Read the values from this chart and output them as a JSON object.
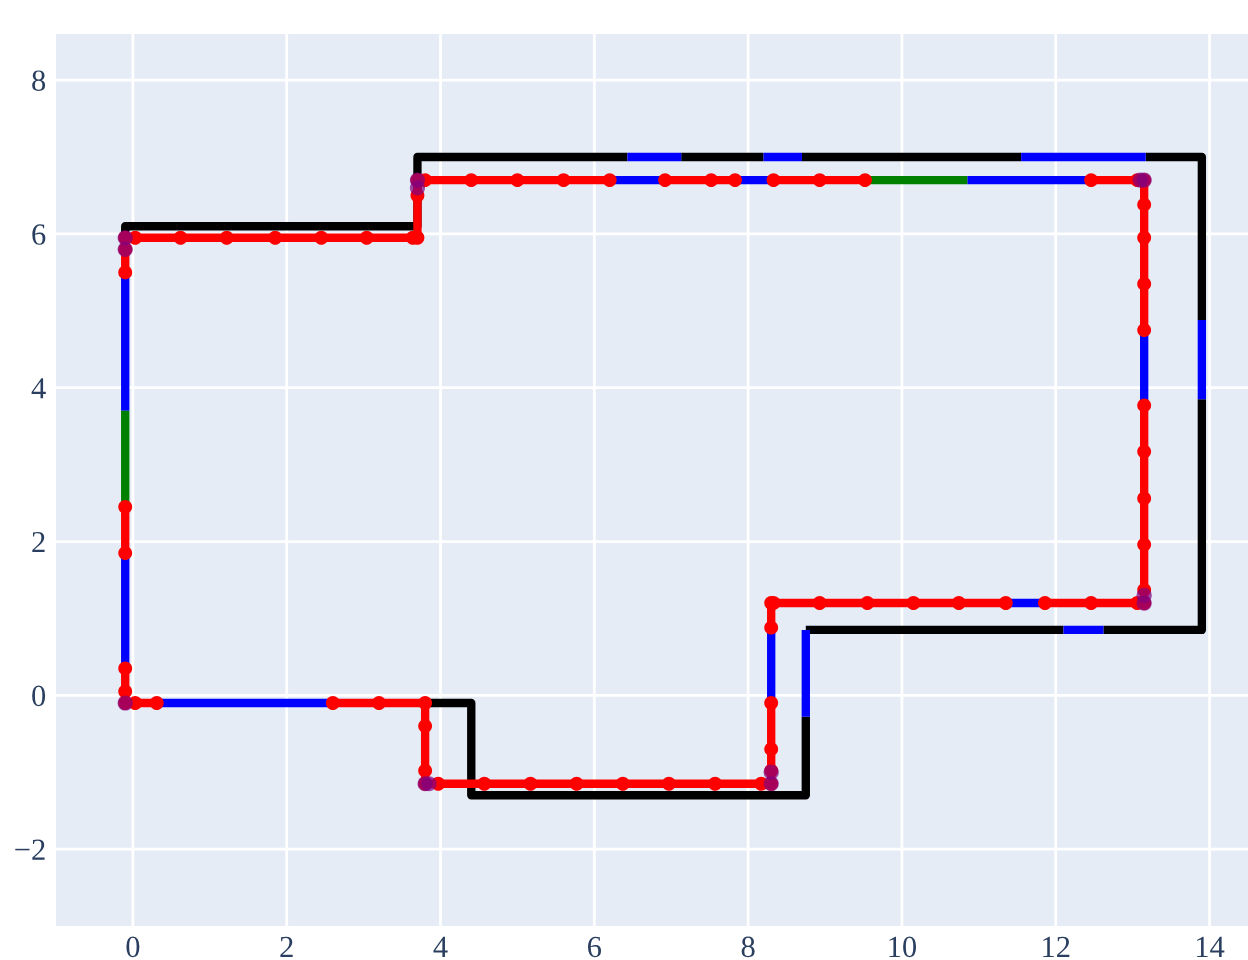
{
  "chart_data": {
    "type": "line",
    "xlim": [
      -1,
      14.5
    ],
    "ylim": [
      -3,
      8.6
    ],
    "xticks": [
      0,
      2,
      4,
      6,
      8,
      10,
      12,
      14
    ],
    "yticks": [
      {
        "value": -2,
        "label": "−2"
      },
      0,
      2,
      4,
      6,
      8
    ],
    "grid": true,
    "legend": false,
    "line_style": "solid",
    "series": [
      {
        "color": "#000000",
        "marker": "none",
        "x": [
          -0.1,
          -0.1,
          3.7,
          3.7,
          6.43,
          null,
          7.13,
          8.2,
          null,
          8.7,
          11.55,
          null,
          13.17,
          13.9,
          13.9,
          null,
          13.9,
          13.9,
          12.62,
          null,
          12.1,
          8.75,
          null,
          8.75,
          8.75,
          4.4,
          4.4,
          3.8
        ],
        "values": [
          6.0,
          6.1,
          6.1,
          7.0,
          7.0,
          null,
          7.0,
          7.0,
          null,
          7.0,
          7.0,
          null,
          7.0,
          7.0,
          4.88,
          null,
          3.85,
          0.85,
          0.85,
          null,
          0.85,
          0.85,
          null,
          -0.28,
          -1.3,
          -1.3,
          -0.1,
          -0.1
        ]
      },
      {
        "color": "#0000ff",
        "marker": "none",
        "x": [
          -0.1,
          -0.1
        ],
        "values": [
          0.35,
          1.85
        ]
      },
      {
        "color": "#0000ff",
        "marker": "none",
        "x": [
          -0.1,
          -0.1
        ],
        "values": [
          3.7,
          5.5
        ]
      },
      {
        "color": "#0000ff",
        "marker": "none",
        "x": [
          6.43,
          7.13,
          null,
          8.2,
          8.7,
          null,
          11.55,
          13.17,
          null,
          13.9,
          13.9,
          null,
          12.62,
          12.1,
          null,
          8.75,
          8.75,
          null,
          6.2,
          6.92,
          null,
          7.83,
          8.33,
          null,
          10.85,
          12.46,
          null,
          13.15,
          13.15,
          null,
          11.86,
          11.35,
          null,
          8.3,
          8.3,
          null,
          2.6,
          0.31
        ],
        "values": [
          7.0,
          7.0,
          null,
          7.0,
          7.0,
          null,
          7.0,
          7.0,
          null,
          4.88,
          3.85,
          null,
          0.85,
          0.85,
          null,
          0.85,
          -0.28,
          null,
          6.7,
          6.7,
          null,
          6.7,
          6.7,
          null,
          6.7,
          6.7,
          null,
          4.75,
          3.77,
          null,
          1.2,
          1.2,
          null,
          0.88,
          -0.1,
          null,
          -0.1,
          -0.1
        ]
      },
      {
        "color": "#008000",
        "marker": "none",
        "x": [
          -0.1,
          -0.1,
          null,
          9.52,
          10.85
        ],
        "values": [
          2.45,
          3.7,
          null,
          6.7,
          6.7
        ]
      },
      {
        "color": "#ff0000",
        "marker": "circle",
        "x": [
          0.31,
          0.03,
          -0.1,
          -0.1,
          -0.1,
          null,
          -0.1,
          -0.1,
          null,
          -0.1,
          -0.1,
          -0.1,
          0.03,
          0.62,
          1.22,
          1.85,
          2.45,
          3.04,
          3.64,
          3.7,
          3.7,
          3.7,
          3.8,
          4.4,
          5.0,
          5.6,
          6.2,
          null,
          6.92,
          7.52,
          7.83,
          null,
          8.33,
          8.93,
          9.52,
          null,
          12.46,
          13.06,
          13.15,
          13.15,
          13.15,
          13.15,
          13.15,
          null,
          13.15,
          13.15,
          13.15,
          13.15,
          13.15,
          13.15,
          13.06,
          12.46,
          11.86,
          null,
          11.35,
          10.74,
          10.15,
          9.55,
          8.93,
          8.33,
          8.3,
          8.3,
          null,
          8.3,
          8.3,
          8.3,
          8.3,
          8.17,
          7.57,
          6.97,
          6.37,
          5.77,
          5.17,
          4.57,
          3.97,
          3.8,
          3.8,
          3.8,
          3.8,
          3.2,
          2.6
        ],
        "values": [
          -0.1,
          -0.1,
          -0.1,
          0.05,
          0.35,
          null,
          1.85,
          2.45,
          null,
          5.5,
          5.8,
          5.95,
          5.95,
          5.95,
          5.95,
          5.95,
          5.95,
          5.95,
          5.95,
          5.95,
          6.5,
          6.7,
          6.7,
          6.7,
          6.7,
          6.7,
          6.7,
          null,
          6.7,
          6.7,
          6.7,
          null,
          6.7,
          6.7,
          6.7,
          null,
          6.7,
          6.7,
          6.7,
          6.38,
          5.95,
          5.35,
          4.75,
          null,
          3.77,
          3.17,
          2.56,
          1.96,
          1.37,
          1.2,
          1.2,
          1.2,
          1.2,
          null,
          1.2,
          1.2,
          1.2,
          1.2,
          1.2,
          1.2,
          1.2,
          0.88,
          null,
          -0.1,
          -0.7,
          -0.98,
          -1.15,
          -1.15,
          -1.15,
          -1.15,
          -1.15,
          -1.15,
          -1.15,
          -1.15,
          -1.15,
          -1.15,
          -0.98,
          -0.4,
          -0.1,
          -0.1,
          -0.1
        ]
      },
      {
        "type": "scatter",
        "color": "#800080",
        "marker": "circle",
        "x": [
          -0.1,
          -0.1,
          -0.1,
          3.7,
          3.7,
          13.1,
          13.15,
          13.15,
          13.15,
          8.3,
          8.3,
          3.8,
          3.85
        ],
        "values": [
          -0.1,
          5.95,
          5.8,
          6.7,
          6.6,
          6.7,
          6.7,
          1.3,
          1.2,
          -1.15,
          -1.0,
          -1.15,
          -1.15
        ]
      }
    ]
  }
}
